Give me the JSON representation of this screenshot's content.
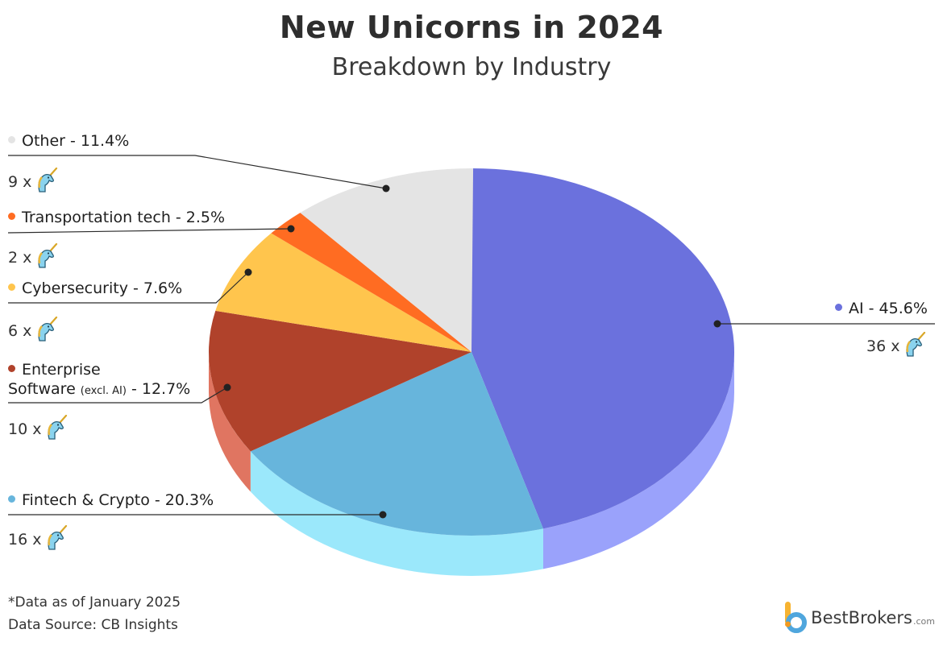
{
  "title": "New Unicorns in 2024",
  "subtitle": "Breakdown by Industry",
  "chart_data": {
    "type": "pie",
    "title": "New Unicorns in 2024",
    "subtitle": "Breakdown by Industry",
    "slices": [
      {
        "label": "AI - 45.6%",
        "name": "AI",
        "percent": 45.6,
        "count": 36,
        "count_label": "36 x",
        "color": "#6b71dd",
        "side_color": "#9aa2fb"
      },
      {
        "label": "Fintech & Crypto - 20.3%",
        "name": "Fintech & Crypto",
        "percent": 20.3,
        "count": 16,
        "count_label": "16 x",
        "color": "#67b5dc",
        "side_color": "#9be8fb"
      },
      {
        "label": "Enterprise Software (excl. AI) - 12.7%",
        "name": "Enterprise Software (excl. AI)",
        "percent": 12.7,
        "count": 10,
        "count_label": "10 x",
        "color": "#b0422b",
        "side_color": "#e07561"
      },
      {
        "label": "Cybersecurity - 7.6%",
        "name": "Cybersecurity",
        "percent": 7.6,
        "count": 6,
        "count_label": "6 x",
        "color": "#ffc54d",
        "side_color": "#ffd97e"
      },
      {
        "label": "Transportation tech - 2.5%",
        "name": "Transportation tech",
        "percent": 2.5,
        "count": 2,
        "count_label": "2 x",
        "color": "#ff6c22",
        "side_color": "#ff9560"
      },
      {
        "label": "Other - 11.4%",
        "name": "Other",
        "percent": 11.4,
        "count": 9,
        "count_label": "9 x",
        "color": "#e4e4e4",
        "side_color": "#cfcfcf"
      }
    ]
  },
  "labels": {
    "ai": "AI - 45.6%",
    "fintech": "Fintech & Crypto - 20.3%",
    "enterprise_line1": "Enterprise",
    "enterprise_line2_a": "Software ",
    "enterprise_line2_small": "(excl. AI)",
    "enterprise_line2_b": " - 12.7%",
    "cyber": "Cybersecurity - 7.6%",
    "transport": "Transportation tech - 2.5%",
    "other": "Other - 11.4%"
  },
  "counts": {
    "ai": "36 x",
    "fintech": "16 x",
    "enterprise": "10 x",
    "cyber": "6 x",
    "transport": "2 x",
    "other": "9 x"
  },
  "footnote": "*Data as of January 2025",
  "source": "Data Source: CB Insights",
  "brand": {
    "name": "BestBrokers",
    "suffix": ".com"
  },
  "icon": "unicorn-icon"
}
